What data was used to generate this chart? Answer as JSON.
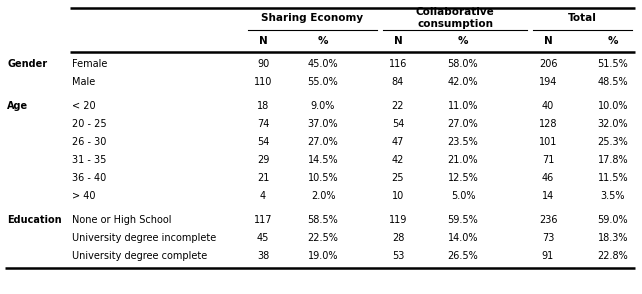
{
  "rows": [
    {
      "category": "Gender",
      "subcategory": "Female",
      "se_n": "90",
      "se_pct": "45.0%",
      "cc_n": "116",
      "cc_pct": "58.0%",
      "t_n": "206",
      "t_pct": "51.5%",
      "gap_before": false
    },
    {
      "category": "",
      "subcategory": "Male",
      "se_n": "110",
      "se_pct": "55.0%",
      "cc_n": "84",
      "cc_pct": "42.0%",
      "t_n": "194",
      "t_pct": "48.5%",
      "gap_before": false
    },
    {
      "category": "Age",
      "subcategory": "< 20",
      "se_n": "18",
      "se_pct": "9.0%",
      "cc_n": "22",
      "cc_pct": "11.0%",
      "t_n": "40",
      "t_pct": "10.0%",
      "gap_before": true
    },
    {
      "category": "",
      "subcategory": "20 - 25",
      "se_n": "74",
      "se_pct": "37.0%",
      "cc_n": "54",
      "cc_pct": "27.0%",
      "t_n": "128",
      "t_pct": "32.0%",
      "gap_before": false
    },
    {
      "category": "",
      "subcategory": "26 - 30",
      "se_n": "54",
      "se_pct": "27.0%",
      "cc_n": "47",
      "cc_pct": "23.5%",
      "t_n": "101",
      "t_pct": "25.3%",
      "gap_before": false
    },
    {
      "category": "",
      "subcategory": "31 - 35",
      "se_n": "29",
      "se_pct": "14.5%",
      "cc_n": "42",
      "cc_pct": "21.0%",
      "t_n": "71",
      "t_pct": "17.8%",
      "gap_before": false
    },
    {
      "category": "",
      "subcategory": "36 - 40",
      "se_n": "21",
      "se_pct": "10.5%",
      "cc_n": "25",
      "cc_pct": "12.5%",
      "t_n": "46",
      "t_pct": "11.5%",
      "gap_before": false
    },
    {
      "category": "",
      "subcategory": "> 40",
      "se_n": "4",
      "se_pct": "2.0%",
      "cc_n": "10",
      "cc_pct": "5.0%",
      "t_n": "14",
      "t_pct": "3.5%",
      "gap_before": false
    },
    {
      "category": "Education",
      "subcategory": "None or High School",
      "se_n": "117",
      "se_pct": "58.5%",
      "cc_n": "119",
      "cc_pct": "59.5%",
      "t_n": "236",
      "t_pct": "59.0%",
      "gap_before": true
    },
    {
      "category": "",
      "subcategory": "University degree incomplete",
      "se_n": "45",
      "se_pct": "22.5%",
      "cc_n": "28",
      "cc_pct": "14.0%",
      "t_n": "73",
      "t_pct": "18.3%",
      "gap_before": false
    },
    {
      "category": "",
      "subcategory": "University degree complete",
      "se_n": "38",
      "se_pct": "19.0%",
      "cc_n": "53",
      "cc_pct": "26.5%",
      "t_n": "91",
      "t_pct": "22.8%",
      "gap_before": false
    }
  ],
  "bg_color": "#ffffff",
  "font_size": 7.0,
  "header_font_size": 7.5
}
